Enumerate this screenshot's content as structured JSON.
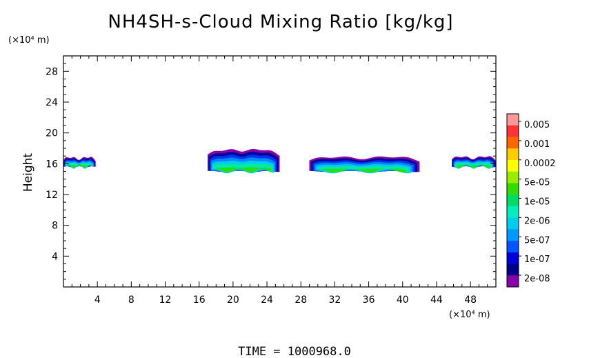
{
  "chart_data": {
    "type": "heatmap",
    "title": "NH4SH-s-Cloud Mixing Ratio [kg/kg]",
    "ylabel": "Height",
    "y_unit": "(×10⁴ m)",
    "x_unit": "(×10⁴ m)",
    "x_range": [
      0,
      51
    ],
    "y_range": [
      0,
      30
    ],
    "x_ticks": [
      4,
      8,
      12,
      16,
      20,
      24,
      28,
      32,
      36,
      40,
      44,
      48
    ],
    "y_ticks": [
      4,
      8,
      12,
      16,
      20,
      24,
      28
    ],
    "colorbar": {
      "labels": [
        "0.005",
        "0.001",
        "0.0002",
        "5e-05",
        "1e-05",
        "2e-06",
        "5e-07",
        "1e-07",
        "2e-08"
      ],
      "colors": [
        "#ff9999",
        "#ff3333",
        "#ff6600",
        "#ffcc00",
        "#ffff00",
        "#99ee00",
        "#33dd00",
        "#00dd66",
        "#00eebb",
        "#00ccee",
        "#0099ff",
        "#0055ff",
        "#0000dd",
        "#000088",
        "#8800aa"
      ]
    },
    "cloud_regions": [
      {
        "x_start": 0,
        "x_end": 3.8,
        "base": 15.6,
        "top": 16.8
      },
      {
        "x_start": 17,
        "x_end": 25.5,
        "base": 15.0,
        "top": 17.9
      },
      {
        "x_start": 29,
        "x_end": 42,
        "base": 15.0,
        "top": 16.9
      },
      {
        "x_start": 45.8,
        "x_end": 51,
        "base": 15.6,
        "top": 16.9
      }
    ],
    "footer": "TIME  =  1000968.0"
  }
}
